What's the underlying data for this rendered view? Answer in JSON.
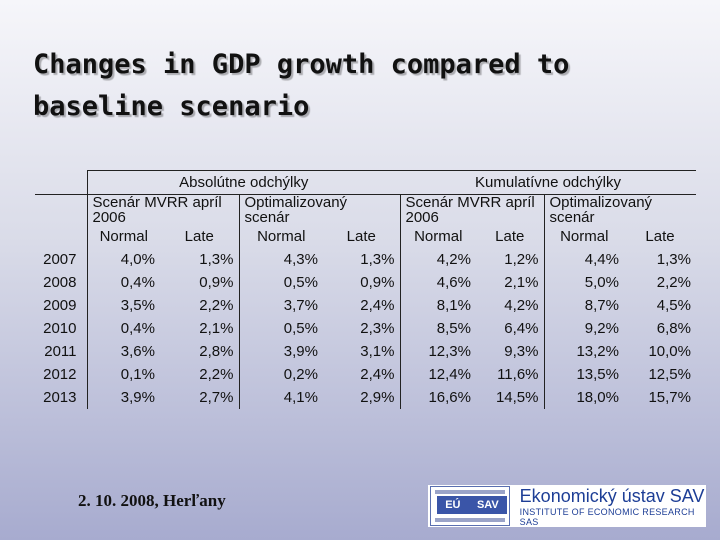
{
  "title_lines": [
    "Changes in GDP growth compared to",
    "baseline scenario"
  ],
  "table": {
    "group_headers": [
      "Absolútne odchýlky",
      "Kumulatívne odchýlky"
    ],
    "scenario_headers": [
      "Scenár MVRR apríl 2006",
      "Optimalizovaný scenár",
      "Scenár MVRR apríl 2006",
      "Optimalizovaný scenár"
    ],
    "sub_headers": [
      "Normal",
      "Late",
      "Normal",
      "Late",
      "Normal",
      "Late",
      "Normal",
      "Late"
    ],
    "rows": [
      {
        "year": "2007",
        "values": [
          "4,0%",
          "1,3%",
          "4,3%",
          "1,3%",
          "4,2%",
          "1,2%",
          "4,4%",
          "1,3%"
        ]
      },
      {
        "year": "2008",
        "values": [
          "0,4%",
          "0,9%",
          "0,5%",
          "0,9%",
          "4,6%",
          "2,1%",
          "5,0%",
          "2,2%"
        ]
      },
      {
        "year": "2009",
        "values": [
          "3,5%",
          "2,2%",
          "3,7%",
          "2,4%",
          "8,1%",
          "4,2%",
          "8,7%",
          "4,5%"
        ]
      },
      {
        "year": "2010",
        "values": [
          "0,4%",
          "2,1%",
          "0,5%",
          "2,3%",
          "8,5%",
          "6,4%",
          "9,2%",
          "6,8%"
        ]
      },
      {
        "year": "2011",
        "values": [
          "3,6%",
          "2,8%",
          "3,9%",
          "3,1%",
          "12,3%",
          "9,3%",
          "13,2%",
          "10,0%"
        ]
      },
      {
        "year": "2012",
        "values": [
          "0,1%",
          "2,2%",
          "0,2%",
          "2,4%",
          "12,4%",
          "11,6%",
          "13,5%",
          "12,5%"
        ]
      },
      {
        "year": "2013",
        "values": [
          "3,9%",
          "2,7%",
          "4,1%",
          "2,9%",
          "16,6%",
          "14,5%",
          "18,0%",
          "15,7%"
        ]
      }
    ]
  },
  "footer": {
    "date_place": "2. 10. 2008, Herľany"
  },
  "logo": {
    "box_text": [
      "EÚ",
      "SAV"
    ],
    "name": "Ekonomický ústav SAV",
    "subtitle": "INSTITUTE OF ECONOMIC RESEARCH SAS"
  }
}
